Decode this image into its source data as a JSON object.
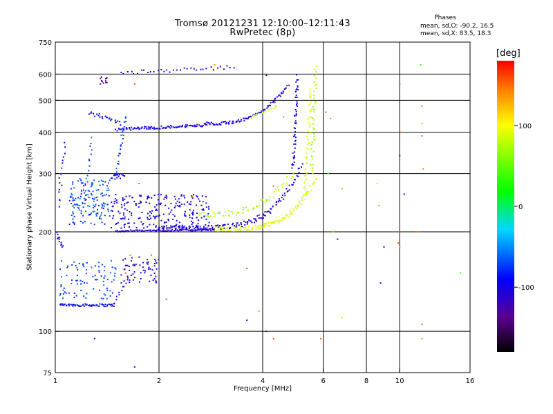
{
  "chart_data": {
    "type": "scatter",
    "title": "Tromsø 20121231 12:10:00–12:11:43",
    "subtitle": "RwPretec (8p)",
    "xlabel": "Frequency [MHz]",
    "ylabel": "Stationary phase Virtual Height [km]",
    "x_scale": "log",
    "y_scale": "log",
    "xlim": [
      1,
      16
    ],
    "ylim": [
      75,
      750
    ],
    "x_ticks": [
      1,
      2,
      4,
      6,
      8,
      10,
      16
    ],
    "x_tick_labels": [
      "1",
      "2",
      "4",
      "6",
      "8",
      "10",
      "16"
    ],
    "x_gridlines": [
      2,
      4,
      6,
      8,
      10
    ],
    "y_ticks": [
      75,
      100,
      200,
      300,
      400,
      500,
      600,
      750
    ],
    "y_tick_labels": [
      "75",
      "100",
      "200",
      "300",
      "400",
      "500",
      "600",
      "750"
    ],
    "y_gridlines": [
      100,
      200,
      300,
      400,
      500,
      600
    ],
    "grid": true,
    "phase_stats": {
      "title": "Phases",
      "o_line": "mean, sd,O: -90.2, 16.5",
      "x_line": "mean, sd,X:  83.5, 18.3"
    },
    "colorbar": {
      "label": "[deg]",
      "range": [
        -180,
        180
      ],
      "ticks": [
        100,
        0,
        -100
      ],
      "tick_labels": [
        "100",
        "0",
        "-100"
      ],
      "colormap": "rainbow: black-purple-blue-cyan-green-yellow-red"
    },
    "traces": [
      {
        "kind": "line",
        "x0": 1.0,
        "x1": 1.05,
        "y0": 200,
        "y1": 180,
        "phase": -100,
        "n": 14,
        "jitter": 0.025
      },
      {
        "kind": "line",
        "x0": 1.02,
        "x1": 1.06,
        "y0": 240,
        "y1": 370,
        "phase": -90,
        "n": 16,
        "jitter": 0.04
      },
      {
        "kind": "line",
        "x0": 1.03,
        "x1": 1.48,
        "y0": 120,
        "y1": 120,
        "phase": -95,
        "n": 60,
        "jitter": 0.018
      },
      {
        "kind": "line",
        "x0": 1.48,
        "x1": 1.62,
        "y0": 120,
        "y1": 145,
        "phase": -100,
        "n": 12,
        "jitter": 0.03
      },
      {
        "kind": "cloud",
        "x0": 1.03,
        "x1": 1.5,
        "y0": 125,
        "y1": 165,
        "phase": -70,
        "n": 90
      },
      {
        "kind": "cloud",
        "x0": 1.55,
        "x1": 2.0,
        "y0": 140,
        "y1": 168,
        "phase": -110,
        "n": 60
      },
      {
        "kind": "cloud",
        "x0": 1.1,
        "x1": 1.45,
        "y0": 210,
        "y1": 290,
        "phase": -70,
        "n": 140
      },
      {
        "kind": "cloud",
        "x0": 1.45,
        "x1": 2.8,
        "y0": 205,
        "y1": 260,
        "phase": -100,
        "n": 230
      },
      {
        "kind": "line",
        "x0": 1.5,
        "x1": 2.9,
        "y0": 201,
        "y1": 203,
        "phase": -115,
        "n": 90,
        "jitter": 0.012
      },
      {
        "kind": "curve",
        "x0": 2.9,
        "x1": 5.7,
        "y0": 204,
        "y1": 290,
        "pow": 4,
        "phase": 80,
        "n": 130,
        "jitter": 0.03
      },
      {
        "kind": "curve",
        "x0": 2.0,
        "x1": 5.2,
        "y0": 205,
        "y1": 320,
        "pow": 5,
        "phase": -105,
        "n": 150,
        "jitter": 0.035
      },
      {
        "kind": "curve",
        "x0": 2.6,
        "x1": 4.9,
        "y0": 225,
        "y1": 300,
        "pow": 3,
        "phase": 60,
        "n": 60,
        "jitter": 0.04
      },
      {
        "kind": "line",
        "x0": 5.3,
        "x1": 5.55,
        "y0": 260,
        "y1": 540,
        "phase": 75,
        "n": 45,
        "jitter": 0.04
      },
      {
        "kind": "line",
        "x0": 5.55,
        "x1": 5.7,
        "y0": 300,
        "y1": 630,
        "phase": 60,
        "n": 40,
        "jitter": 0.03
      },
      {
        "kind": "line",
        "x0": 4.9,
        "x1": 5.05,
        "y0": 310,
        "y1": 590,
        "phase": -100,
        "n": 50,
        "jitter": 0.03
      },
      {
        "kind": "line",
        "x0": 1.5,
        "x1": 2.7,
        "y0": 408,
        "y1": 420,
        "phase": -100,
        "n": 90,
        "jitter": 0.02
      },
      {
        "kind": "curve",
        "x0": 2.7,
        "x1": 4.75,
        "y0": 425,
        "y1": 560,
        "pow": 3,
        "phase": -105,
        "n": 90,
        "jitter": 0.02
      },
      {
        "kind": "line",
        "x0": 3.7,
        "x1": 4.4,
        "y0": 445,
        "y1": 480,
        "phase": 70,
        "n": 18,
        "jitter": 0.02
      },
      {
        "kind": "line",
        "x0": 1.25,
        "x1": 1.55,
        "y0": 460,
        "y1": 425,
        "phase": -100,
        "n": 25,
        "jitter": 0.03
      },
      {
        "kind": "line",
        "x0": 1.55,
        "x1": 3.3,
        "y0": 605,
        "y1": 630,
        "phase": -105,
        "n": 35,
        "jitter": 0.025
      },
      {
        "kind": "cloud",
        "x0": 1.35,
        "x1": 1.42,
        "y0": 560,
        "y1": 590,
        "phase": -150,
        "n": 12
      },
      {
        "kind": "line",
        "x0": 1.2,
        "x1": 1.28,
        "y0": 230,
        "y1": 380,
        "phase": -70,
        "n": 20,
        "jitter": 0.03
      },
      {
        "kind": "line",
        "x0": 1.5,
        "x1": 1.6,
        "y0": 290,
        "y1": 450,
        "phase": -75,
        "n": 25,
        "jitter": 0.025
      },
      {
        "kind": "cloud",
        "x0": 1.45,
        "x1": 1.6,
        "y0": 290,
        "y1": 300,
        "phase": -100,
        "n": 15
      }
    ],
    "scatter": [
      [
        10.0,
        180,
        140
      ],
      [
        10.3,
        260,
        -100
      ],
      [
        10.0,
        340,
        -100
      ],
      [
        10.1,
        400,
        150
      ],
      [
        10.0,
        560,
        160
      ],
      [
        11.5,
        640,
        20
      ],
      [
        11.6,
        480,
        150
      ],
      [
        11.6,
        425,
        30
      ],
      [
        11.6,
        390,
        150
      ],
      [
        11.7,
        310,
        140
      ],
      [
        11.6,
        95,
        130
      ],
      [
        11.6,
        105,
        150
      ],
      [
        9.9,
        185,
        160
      ],
      [
        10.0,
        200,
        160
      ],
      [
        9.0,
        180,
        -100
      ],
      [
        8.8,
        140,
        -100
      ],
      [
        8.7,
        240,
        20
      ],
      [
        8.6,
        280,
        60
      ],
      [
        6.4,
        200,
        30
      ],
      [
        6.6,
        190,
        -100
      ],
      [
        6.2,
        300,
        20
      ],
      [
        6.3,
        440,
        140
      ],
      [
        6.1,
        460,
        160
      ],
      [
        6.8,
        270,
        130
      ],
      [
        6.8,
        110,
        110
      ],
      [
        5.9,
        95,
        150
      ],
      [
        4.3,
        95,
        160
      ],
      [
        4.1,
        100,
        -100
      ],
      [
        3.9,
        115,
        20
      ],
      [
        3.6,
        108,
        -100
      ],
      [
        3.6,
        155,
        150
      ],
      [
        2.1,
        125,
        160
      ],
      [
        1.7,
        78,
        -100
      ],
      [
        1.3,
        95,
        -100
      ],
      [
        11.3,
        200,
        140
      ],
      [
        15.0,
        150,
        30
      ],
      [
        10.9,
        200,
        150
      ],
      [
        4.3,
        275,
        150
      ],
      [
        2.9,
        640,
        140
      ],
      [
        2.2,
        600,
        150
      ],
      [
        4.1,
        595,
        -120
      ],
      [
        1.7,
        560,
        150
      ],
      [
        1.65,
        170,
        150
      ],
      [
        1.6,
        150,
        150
      ],
      [
        2.5,
        255,
        140
      ],
      [
        1.75,
        280,
        150
      ],
      [
        4.6,
        445,
        140
      ],
      [
        1.9,
        170,
        150
      ]
    ]
  }
}
